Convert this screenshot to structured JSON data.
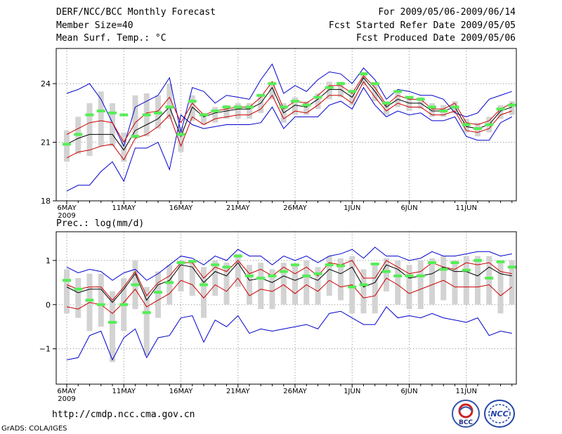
{
  "header": {
    "title": "DERF/NCC/BCC Monthly Forecast",
    "member_size": "Member Size=40",
    "variable1": "Mean Surf. Temp.: °C",
    "period": "For 2009/05/06-2009/06/14",
    "started": "Fcst Started Refer Date 2009/05/05",
    "produced": "Fcst Produced Date 2009/05/06"
  },
  "footer": {
    "url": "http://cmdp.ncc.cma.gov.cn",
    "grads": "GrADS: COLA/IGES"
  },
  "logos": {
    "bcc": "BCC",
    "ncc": "NCC"
  },
  "colors": {
    "mean": "#000000",
    "spread": "#cc0000",
    "extreme": "#0000cc",
    "box": "#d3d3d3",
    "obs": "#55ee55"
  },
  "chart_data": [
    {
      "type": "line",
      "title": "Mean Surf. Temp.: °C",
      "ylim": [
        18,
        25.8
      ],
      "yticks": [
        18,
        21,
        24
      ],
      "ytick_labels": [
        "18",
        "21",
        "24"
      ],
      "xticks": [
        "6MAY",
        "11MAY",
        "16MAY",
        "21MAY",
        "26MAY",
        "1JUN",
        "6JUN",
        "11JUN"
      ],
      "xticks_year": "2009",
      "n_days": 40,
      "series": [
        {
          "name": "max",
          "values": [
            23.5,
            23.7,
            24.0,
            23.2,
            22.0,
            20.8,
            22.8,
            23.1,
            23.4,
            24.3,
            21.5,
            23.8,
            23.6,
            23.0,
            23.4,
            23.3,
            23.2,
            24.2,
            25.0,
            23.5,
            23.9,
            23.6,
            24.2,
            24.6,
            24.5,
            24.0,
            24.8,
            24.2,
            23.2,
            23.7,
            23.6,
            23.4,
            23.4,
            23.2,
            22.5,
            22.3,
            22.5,
            23.2,
            23.4,
            23.6
          ]
        },
        {
          "name": "upper",
          "values": [
            21.4,
            21.7,
            22.0,
            22.1,
            22.0,
            21.0,
            22.0,
            22.5,
            22.6,
            23.3,
            22.0,
            23.0,
            22.4,
            22.6,
            22.7,
            22.8,
            22.8,
            23.3,
            24.1,
            22.7,
            23.1,
            23.0,
            23.4,
            23.9,
            23.9,
            23.5,
            24.4,
            23.8,
            22.9,
            23.4,
            23.2,
            23.2,
            22.7,
            22.7,
            23.0,
            22.0,
            21.9,
            22.1,
            22.7,
            23.0
          ]
        },
        {
          "name": "mean",
          "values": [
            20.9,
            21.2,
            21.4,
            21.4,
            21.4,
            20.6,
            21.6,
            21.9,
            22.2,
            22.8,
            21.3,
            22.8,
            22.3,
            22.5,
            22.6,
            22.7,
            22.7,
            23.0,
            23.8,
            22.5,
            22.9,
            22.8,
            23.2,
            23.7,
            23.7,
            23.3,
            24.3,
            23.6,
            22.8,
            23.2,
            23.0,
            23.0,
            22.6,
            22.6,
            22.8,
            21.8,
            21.7,
            21.9,
            22.6,
            22.8
          ]
        },
        {
          "name": "lower",
          "values": [
            20.2,
            20.5,
            20.6,
            20.8,
            20.9,
            20.1,
            21.2,
            21.4,
            21.8,
            22.4,
            20.8,
            22.3,
            21.9,
            22.2,
            22.3,
            22.4,
            22.4,
            22.7,
            23.4,
            22.2,
            22.6,
            22.5,
            22.9,
            23.4,
            23.4,
            23.0,
            24.1,
            23.3,
            22.6,
            23.0,
            22.8,
            22.8,
            22.4,
            22.4,
            22.6,
            21.6,
            21.5,
            21.7,
            22.4,
            22.6
          ]
        },
        {
          "name": "min",
          "values": [
            18.5,
            18.8,
            18.8,
            19.5,
            20.0,
            19.0,
            20.7,
            20.7,
            21.0,
            19.6,
            22.4,
            21.9,
            21.7,
            21.8,
            21.9,
            21.9,
            21.9,
            22.0,
            22.8,
            21.7,
            22.3,
            22.3,
            22.3,
            22.9,
            23.1,
            22.7,
            23.8,
            22.9,
            22.3,
            22.6,
            22.4,
            22.5,
            22.1,
            22.1,
            22.3,
            21.3,
            21.1,
            21.1,
            22.0,
            22.3
          ]
        }
      ],
      "boxes": {
        "low": [
          20.0,
          20.4,
          20.3,
          20.8,
          20.8,
          20.0,
          21.2,
          21.3,
          21.7,
          22.2,
          20.5,
          22.1,
          21.9,
          22.0,
          22.2,
          22.2,
          22.2,
          22.5,
          23.2,
          22.0,
          22.4,
          22.4,
          22.7,
          23.2,
          23.3,
          22.9,
          23.9,
          23.1,
          22.4,
          22.8,
          22.6,
          22.7,
          22.3,
          22.3,
          22.5,
          21.5,
          21.3,
          21.5,
          22.2,
          22.4
        ],
        "high": [
          21.6,
          22.3,
          23.0,
          23.6,
          23.0,
          21.5,
          23.4,
          23.5,
          23.4,
          24.0,
          21.8,
          23.4,
          22.5,
          22.8,
          22.9,
          23.0,
          23.0,
          23.4,
          24.1,
          23.0,
          23.3,
          23.1,
          23.5,
          24.1,
          24.1,
          23.7,
          24.6,
          24.0,
          23.1,
          23.6,
          23.3,
          23.3,
          23.0,
          22.9,
          23.1,
          22.2,
          22.0,
          22.3,
          22.9,
          23.1
        ]
      },
      "observed": [
        20.9,
        21.4,
        22.4,
        22.6,
        22.5,
        22.4,
        21.3,
        22.4,
        22.5,
        22.8,
        21.4,
        23.1,
        22.4,
        22.6,
        22.8,
        22.8,
        22.8,
        23.4,
        24.0,
        22.8,
        23.1,
        22.9,
        23.3,
        23.8,
        24.0,
        23.6,
        24.5,
        24.0,
        23.0,
        23.6,
        23.3,
        23.2,
        22.8,
        22.6,
        22.8,
        21.9,
        21.7,
        21.9,
        22.7,
        22.9
      ]
    },
    {
      "type": "line",
      "title": "Prec.: log(mm/d)",
      "ylim": [
        -1.8,
        1.65
      ],
      "yticks": [
        -1,
        0,
        1
      ],
      "ytick_labels": [
        "−1",
        "0",
        "1"
      ],
      "xticks": [
        "6MAY",
        "11MAY",
        "16MAY",
        "21MAY",
        "26MAY",
        "1JUN",
        "6JUN",
        "11JUN"
      ],
      "xticks_year": "2009",
      "n_days": 40,
      "series": [
        {
          "name": "max",
          "values": [
            0.85,
            0.72,
            0.8,
            0.75,
            0.55,
            0.72,
            0.8,
            0.55,
            0.7,
            0.9,
            1.1,
            1.05,
            0.9,
            1.1,
            1.0,
            1.25,
            1.1,
            1.1,
            0.9,
            1.1,
            1.0,
            1.1,
            0.95,
            1.1,
            1.15,
            1.25,
            1.05,
            1.3,
            1.1,
            1.1,
            1.0,
            1.05,
            1.2,
            1.1,
            1.1,
            1.15,
            1.2,
            1.2,
            1.1,
            1.15
          ]
        },
        {
          "name": "upper",
          "values": [
            0.45,
            0.35,
            0.4,
            0.4,
            0.1,
            0.4,
            0.75,
            0.2,
            0.5,
            0.65,
            0.95,
            0.95,
            0.6,
            0.85,
            0.75,
            1.0,
            0.7,
            0.8,
            0.65,
            0.85,
            0.7,
            0.85,
            0.65,
            0.95,
            0.9,
            1.0,
            0.6,
            0.6,
            1.0,
            0.85,
            0.7,
            0.75,
            0.95,
            0.85,
            0.8,
            0.95,
            0.9,
            0.95,
            0.75,
            0.7
          ]
        },
        {
          "name": "mean",
          "values": [
            0.4,
            0.27,
            0.35,
            0.35,
            0.05,
            0.35,
            0.7,
            0.1,
            0.45,
            0.55,
            0.9,
            0.85,
            0.5,
            0.75,
            0.65,
            0.95,
            0.55,
            0.6,
            0.5,
            0.65,
            0.55,
            0.65,
            0.55,
            0.8,
            0.7,
            0.85,
            0.4,
            0.5,
            0.9,
            0.8,
            0.6,
            0.65,
            0.7,
            0.85,
            0.75,
            0.75,
            0.65,
            0.85,
            0.7,
            0.65
          ]
        },
        {
          "name": "lower",
          "values": [
            -0.05,
            -0.1,
            0.05,
            0.0,
            -0.2,
            0.05,
            0.35,
            -0.05,
            0.1,
            0.25,
            0.55,
            0.45,
            0.15,
            0.45,
            0.3,
            0.6,
            0.2,
            0.35,
            0.3,
            0.45,
            0.25,
            0.45,
            0.3,
            0.55,
            0.4,
            0.45,
            0.15,
            0.2,
            0.6,
            0.45,
            0.25,
            0.35,
            0.45,
            0.55,
            0.4,
            0.4,
            0.4,
            0.45,
            0.2,
            0.4
          ]
        },
        {
          "name": "min",
          "values": [
            -1.25,
            -1.2,
            -0.7,
            -0.6,
            -1.25,
            -0.75,
            -0.55,
            -1.2,
            -0.75,
            -0.7,
            -0.3,
            -0.25,
            -0.85,
            -0.35,
            -0.5,
            -0.25,
            -0.65,
            -0.55,
            -0.6,
            -0.55,
            -0.5,
            -0.45,
            -0.55,
            -0.2,
            -0.15,
            -0.3,
            -0.45,
            -0.45,
            -0.05,
            -0.3,
            -0.25,
            -0.3,
            -0.2,
            -0.3,
            -0.35,
            -0.4,
            -0.3,
            -0.7,
            -0.6,
            -0.65
          ]
        },
        {
          "name": "observed",
          "values": [
            0.55,
            0.35,
            0.1,
            0.0,
            -0.4,
            0.0,
            0.45,
            -0.18,
            0.28,
            0.5,
            0.95,
            0.98,
            0.45,
            0.9,
            0.85,
            1.1,
            0.65,
            0.6,
            0.65,
            0.75,
            0.9,
            0.65,
            0.7,
            0.9,
            0.88,
            0.4,
            0.45,
            0.92,
            0.75,
            0.65,
            0.65,
            0.65,
            0.95,
            0.8,
            0.95,
            0.78,
            1.0,
            0.6,
            0.97,
            0.85
          ]
        }
      ],
      "boxes": {
        "low": [
          -0.2,
          -0.3,
          -0.6,
          -0.5,
          -1.3,
          -0.6,
          -0.1,
          -1.15,
          -0.3,
          0.0,
          0.3,
          0.2,
          -0.3,
          0.2,
          0.0,
          0.4,
          0.0,
          -0.1,
          -0.1,
          0.0,
          0.0,
          0.0,
          0.0,
          0.2,
          0.1,
          -0.2,
          -0.2,
          -0.2,
          0.3,
          0.0,
          -0.1,
          -0.1,
          0.0,
          0.1,
          0.0,
          0.0,
          0.0,
          0.0,
          -0.2,
          0.0
        ],
        "high": [
          0.8,
          0.6,
          0.7,
          0.7,
          0.3,
          0.6,
          1.0,
          0.4,
          0.75,
          0.9,
          1.0,
          1.0,
          0.85,
          1.0,
          0.95,
          1.15,
          0.9,
          0.95,
          0.8,
          0.95,
          0.9,
          1.0,
          0.85,
          1.1,
          1.05,
          1.1,
          0.8,
          0.95,
          1.05,
          1.0,
          0.9,
          1.0,
          1.05,
          1.1,
          1.0,
          1.1,
          1.1,
          1.1,
          1.0,
          1.0
        ]
      }
    }
  ]
}
